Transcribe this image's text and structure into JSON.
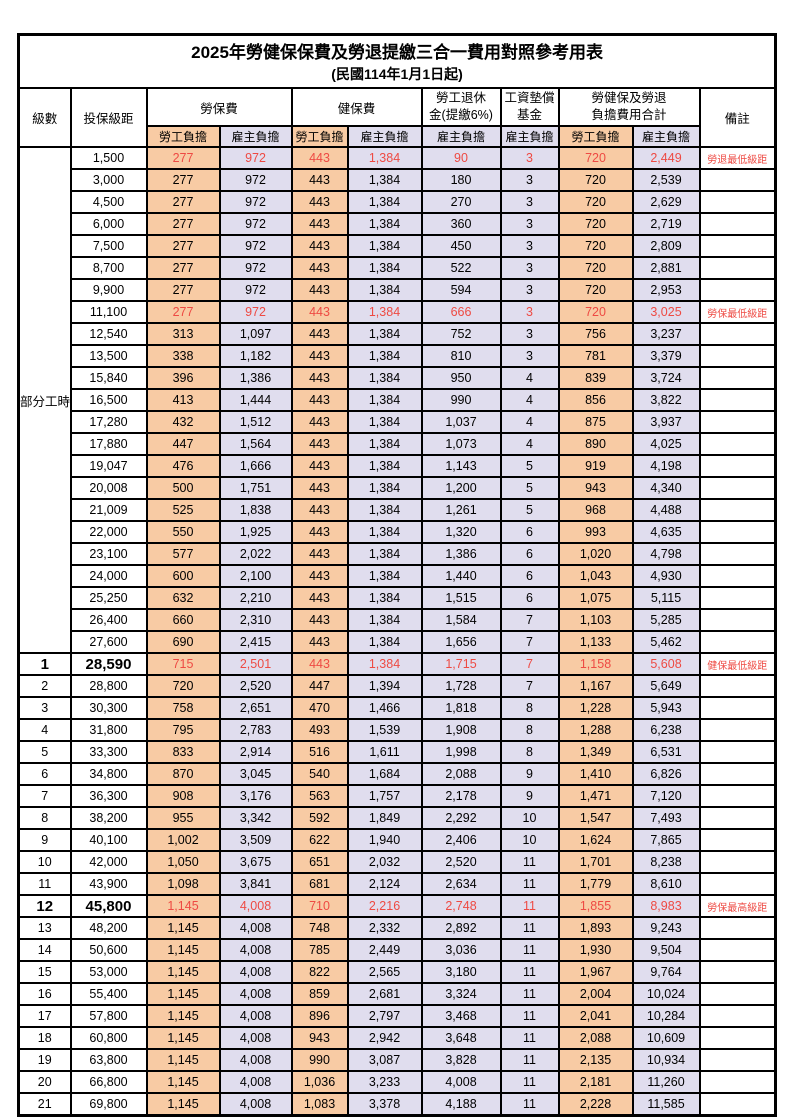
{
  "title": "2025年勞健保保費及勞退提繳三合一費用對照參考用表",
  "subtitle": "(民國114年1月1日起)",
  "columns": {
    "level": "級數",
    "bracket": "投保級距",
    "labor_fee": "勞保費",
    "health_fee": "健保費",
    "pension_line1": "勞工退休",
    "pension_line2": "金(提繳6%)",
    "wage_fund_line1": "工資墊償",
    "wage_fund_line2": "基金",
    "total_line1": "勞健保及勞退",
    "total_line2": "負擔費用合計",
    "remark": "備註",
    "employee_share": "勞工負擔",
    "employer_share": "雇主負擔"
  },
  "part_time_label": "部分工時",
  "colors": {
    "employee_bg": "#f8cba4",
    "employer_bg": "#e0ddee",
    "highlight_text": "#ee4a43",
    "border": "#000000"
  },
  "rows": [
    {
      "level": "",
      "bracket": "1,500",
      "values": [
        "277",
        "972",
        "443",
        "1,384",
        "90",
        "3",
        "720",
        "2,449"
      ],
      "remark": "勞退最低級距",
      "red": true,
      "big": false
    },
    {
      "level": "",
      "bracket": "3,000",
      "values": [
        "277",
        "972",
        "443",
        "1,384",
        "180",
        "3",
        "720",
        "2,539"
      ],
      "remark": "",
      "red": false,
      "big": false
    },
    {
      "level": "",
      "bracket": "4,500",
      "values": [
        "277",
        "972",
        "443",
        "1,384",
        "270",
        "3",
        "720",
        "2,629"
      ],
      "remark": "",
      "red": false,
      "big": false
    },
    {
      "level": "",
      "bracket": "6,000",
      "values": [
        "277",
        "972",
        "443",
        "1,384",
        "360",
        "3",
        "720",
        "2,719"
      ],
      "remark": "",
      "red": false,
      "big": false
    },
    {
      "level": "",
      "bracket": "7,500",
      "values": [
        "277",
        "972",
        "443",
        "1,384",
        "450",
        "3",
        "720",
        "2,809"
      ],
      "remark": "",
      "red": false,
      "big": false
    },
    {
      "level": "",
      "bracket": "8,700",
      "values": [
        "277",
        "972",
        "443",
        "1,384",
        "522",
        "3",
        "720",
        "2,881"
      ],
      "remark": "",
      "red": false,
      "big": false
    },
    {
      "level": "",
      "bracket": "9,900",
      "values": [
        "277",
        "972",
        "443",
        "1,384",
        "594",
        "3",
        "720",
        "2,953"
      ],
      "remark": "",
      "red": false,
      "big": false
    },
    {
      "level": "",
      "bracket": "11,100",
      "values": [
        "277",
        "972",
        "443",
        "1,384",
        "666",
        "3",
        "720",
        "3,025"
      ],
      "remark": "勞保最低級距",
      "red": true,
      "big": false
    },
    {
      "level": "",
      "bracket": "12,540",
      "values": [
        "313",
        "1,097",
        "443",
        "1,384",
        "752",
        "3",
        "756",
        "3,237"
      ],
      "remark": "",
      "red": false,
      "big": false
    },
    {
      "level": "",
      "bracket": "13,500",
      "values": [
        "338",
        "1,182",
        "443",
        "1,384",
        "810",
        "3",
        "781",
        "3,379"
      ],
      "remark": "",
      "red": false,
      "big": false
    },
    {
      "level": "",
      "bracket": "15,840",
      "values": [
        "396",
        "1,386",
        "443",
        "1,384",
        "950",
        "4",
        "839",
        "3,724"
      ],
      "remark": "",
      "red": false,
      "big": false
    },
    {
      "level": "",
      "bracket": "16,500",
      "values": [
        "413",
        "1,444",
        "443",
        "1,384",
        "990",
        "4",
        "856",
        "3,822"
      ],
      "remark": "",
      "red": false,
      "big": false
    },
    {
      "level": "",
      "bracket": "17,280",
      "values": [
        "432",
        "1,512",
        "443",
        "1,384",
        "1,037",
        "4",
        "875",
        "3,937"
      ],
      "remark": "",
      "red": false,
      "big": false
    },
    {
      "level": "",
      "bracket": "17,880",
      "values": [
        "447",
        "1,564",
        "443",
        "1,384",
        "1,073",
        "4",
        "890",
        "4,025"
      ],
      "remark": "",
      "red": false,
      "big": false
    },
    {
      "level": "",
      "bracket": "19,047",
      "values": [
        "476",
        "1,666",
        "443",
        "1,384",
        "1,143",
        "5",
        "919",
        "4,198"
      ],
      "remark": "",
      "red": false,
      "big": false
    },
    {
      "level": "",
      "bracket": "20,008",
      "values": [
        "500",
        "1,751",
        "443",
        "1,384",
        "1,200",
        "5",
        "943",
        "4,340"
      ],
      "remark": "",
      "red": false,
      "big": false
    },
    {
      "level": "",
      "bracket": "21,009",
      "values": [
        "525",
        "1,838",
        "443",
        "1,384",
        "1,261",
        "5",
        "968",
        "4,488"
      ],
      "remark": "",
      "red": false,
      "big": false
    },
    {
      "level": "",
      "bracket": "22,000",
      "values": [
        "550",
        "1,925",
        "443",
        "1,384",
        "1,320",
        "6",
        "993",
        "4,635"
      ],
      "remark": "",
      "red": false,
      "big": false
    },
    {
      "level": "",
      "bracket": "23,100",
      "values": [
        "577",
        "2,022",
        "443",
        "1,384",
        "1,386",
        "6",
        "1,020",
        "4,798"
      ],
      "remark": "",
      "red": false,
      "big": false
    },
    {
      "level": "",
      "bracket": "24,000",
      "values": [
        "600",
        "2,100",
        "443",
        "1,384",
        "1,440",
        "6",
        "1,043",
        "4,930"
      ],
      "remark": "",
      "red": false,
      "big": false
    },
    {
      "level": "",
      "bracket": "25,250",
      "values": [
        "632",
        "2,210",
        "443",
        "1,384",
        "1,515",
        "6",
        "1,075",
        "5,115"
      ],
      "remark": "",
      "red": false,
      "big": false
    },
    {
      "level": "",
      "bracket": "26,400",
      "values": [
        "660",
        "2,310",
        "443",
        "1,384",
        "1,584",
        "7",
        "1,103",
        "5,285"
      ],
      "remark": "",
      "red": false,
      "big": false
    },
    {
      "level": "",
      "bracket": "27,600",
      "values": [
        "690",
        "2,415",
        "443",
        "1,384",
        "1,656",
        "7",
        "1,133",
        "5,462"
      ],
      "remark": "",
      "red": false,
      "big": false
    },
    {
      "level": "1",
      "bracket": "28,590",
      "values": [
        "715",
        "2,501",
        "443",
        "1,384",
        "1,715",
        "7",
        "1,158",
        "5,608"
      ],
      "remark": "健保最低級距",
      "red": true,
      "big": true
    },
    {
      "level": "2",
      "bracket": "28,800",
      "values": [
        "720",
        "2,520",
        "447",
        "1,394",
        "1,728",
        "7",
        "1,167",
        "5,649"
      ],
      "remark": "",
      "red": false,
      "big": false
    },
    {
      "level": "3",
      "bracket": "30,300",
      "values": [
        "758",
        "2,651",
        "470",
        "1,466",
        "1,818",
        "8",
        "1,228",
        "5,943"
      ],
      "remark": "",
      "red": false,
      "big": false
    },
    {
      "level": "4",
      "bracket": "31,800",
      "values": [
        "795",
        "2,783",
        "493",
        "1,539",
        "1,908",
        "8",
        "1,288",
        "6,238"
      ],
      "remark": "",
      "red": false,
      "big": false
    },
    {
      "level": "5",
      "bracket": "33,300",
      "values": [
        "833",
        "2,914",
        "516",
        "1,611",
        "1,998",
        "8",
        "1,349",
        "6,531"
      ],
      "remark": "",
      "red": false,
      "big": false
    },
    {
      "level": "6",
      "bracket": "34,800",
      "values": [
        "870",
        "3,045",
        "540",
        "1,684",
        "2,088",
        "9",
        "1,410",
        "6,826"
      ],
      "remark": "",
      "red": false,
      "big": false
    },
    {
      "level": "7",
      "bracket": "36,300",
      "values": [
        "908",
        "3,176",
        "563",
        "1,757",
        "2,178",
        "9",
        "1,471",
        "7,120"
      ],
      "remark": "",
      "red": false,
      "big": false
    },
    {
      "level": "8",
      "bracket": "38,200",
      "values": [
        "955",
        "3,342",
        "592",
        "1,849",
        "2,292",
        "10",
        "1,547",
        "7,493"
      ],
      "remark": "",
      "red": false,
      "big": false
    },
    {
      "level": "9",
      "bracket": "40,100",
      "values": [
        "1,002",
        "3,509",
        "622",
        "1,940",
        "2,406",
        "10",
        "1,624",
        "7,865"
      ],
      "remark": "",
      "red": false,
      "big": false
    },
    {
      "level": "10",
      "bracket": "42,000",
      "values": [
        "1,050",
        "3,675",
        "651",
        "2,032",
        "2,520",
        "11",
        "1,701",
        "8,238"
      ],
      "remark": "",
      "red": false,
      "big": false
    },
    {
      "level": "11",
      "bracket": "43,900",
      "values": [
        "1,098",
        "3,841",
        "681",
        "2,124",
        "2,634",
        "11",
        "1,779",
        "8,610"
      ],
      "remark": "",
      "red": false,
      "big": false
    },
    {
      "level": "12",
      "bracket": "45,800",
      "values": [
        "1,145",
        "4,008",
        "710",
        "2,216",
        "2,748",
        "11",
        "1,855",
        "8,983"
      ],
      "remark": "勞保最高級距",
      "red": true,
      "big": true
    },
    {
      "level": "13",
      "bracket": "48,200",
      "values": [
        "1,145",
        "4,008",
        "748",
        "2,332",
        "2,892",
        "11",
        "1,893",
        "9,243"
      ],
      "remark": "",
      "red": false,
      "big": false
    },
    {
      "level": "14",
      "bracket": "50,600",
      "values": [
        "1,145",
        "4,008",
        "785",
        "2,449",
        "3,036",
        "11",
        "1,930",
        "9,504"
      ],
      "remark": "",
      "red": false,
      "big": false
    },
    {
      "level": "15",
      "bracket": "53,000",
      "values": [
        "1,145",
        "4,008",
        "822",
        "2,565",
        "3,180",
        "11",
        "1,967",
        "9,764"
      ],
      "remark": "",
      "red": false,
      "big": false
    },
    {
      "level": "16",
      "bracket": "55,400",
      "values": [
        "1,145",
        "4,008",
        "859",
        "2,681",
        "3,324",
        "11",
        "2,004",
        "10,024"
      ],
      "remark": "",
      "red": false,
      "big": false
    },
    {
      "level": "17",
      "bracket": "57,800",
      "values": [
        "1,145",
        "4,008",
        "896",
        "2,797",
        "3,468",
        "11",
        "2,041",
        "10,284"
      ],
      "remark": "",
      "red": false,
      "big": false
    },
    {
      "level": "18",
      "bracket": "60,800",
      "values": [
        "1,145",
        "4,008",
        "943",
        "2,942",
        "3,648",
        "11",
        "2,088",
        "10,609"
      ],
      "remark": "",
      "red": false,
      "big": false
    },
    {
      "level": "19",
      "bracket": "63,800",
      "values": [
        "1,145",
        "4,008",
        "990",
        "3,087",
        "3,828",
        "11",
        "2,135",
        "10,934"
      ],
      "remark": "",
      "red": false,
      "big": false
    },
    {
      "level": "20",
      "bracket": "66,800",
      "values": [
        "1,145",
        "4,008",
        "1,036",
        "3,233",
        "4,008",
        "11",
        "2,181",
        "11,260"
      ],
      "remark": "",
      "red": false,
      "big": false
    },
    {
      "level": "21",
      "bracket": "69,800",
      "values": [
        "1,145",
        "4,008",
        "1,083",
        "3,378",
        "4,188",
        "11",
        "2,228",
        "11,585"
      ],
      "remark": "",
      "red": false,
      "big": false
    }
  ]
}
